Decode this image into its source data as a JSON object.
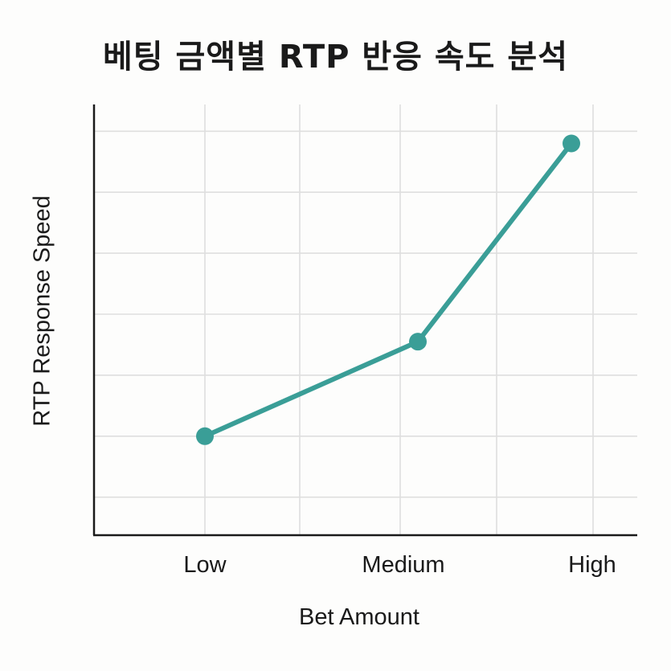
{
  "chart_data": {
    "type": "line",
    "title": "베팅 금액별 RTP 반응 속도 분석",
    "xlabel": "Bet Amount",
    "ylabel": "RTP Response Speed",
    "categories": [
      "Low",
      "Medium",
      "High"
    ],
    "series": [
      {
        "values": [
          2,
          3.55,
          6.8
        ]
      }
    ],
    "ylim": [
      0,
      7
    ],
    "grid": true,
    "y_tick_labels_shown": false,
    "colors": {
      "line": "#3a9e97",
      "grid": "#dedede",
      "axis": "#1a1a1a"
    }
  }
}
